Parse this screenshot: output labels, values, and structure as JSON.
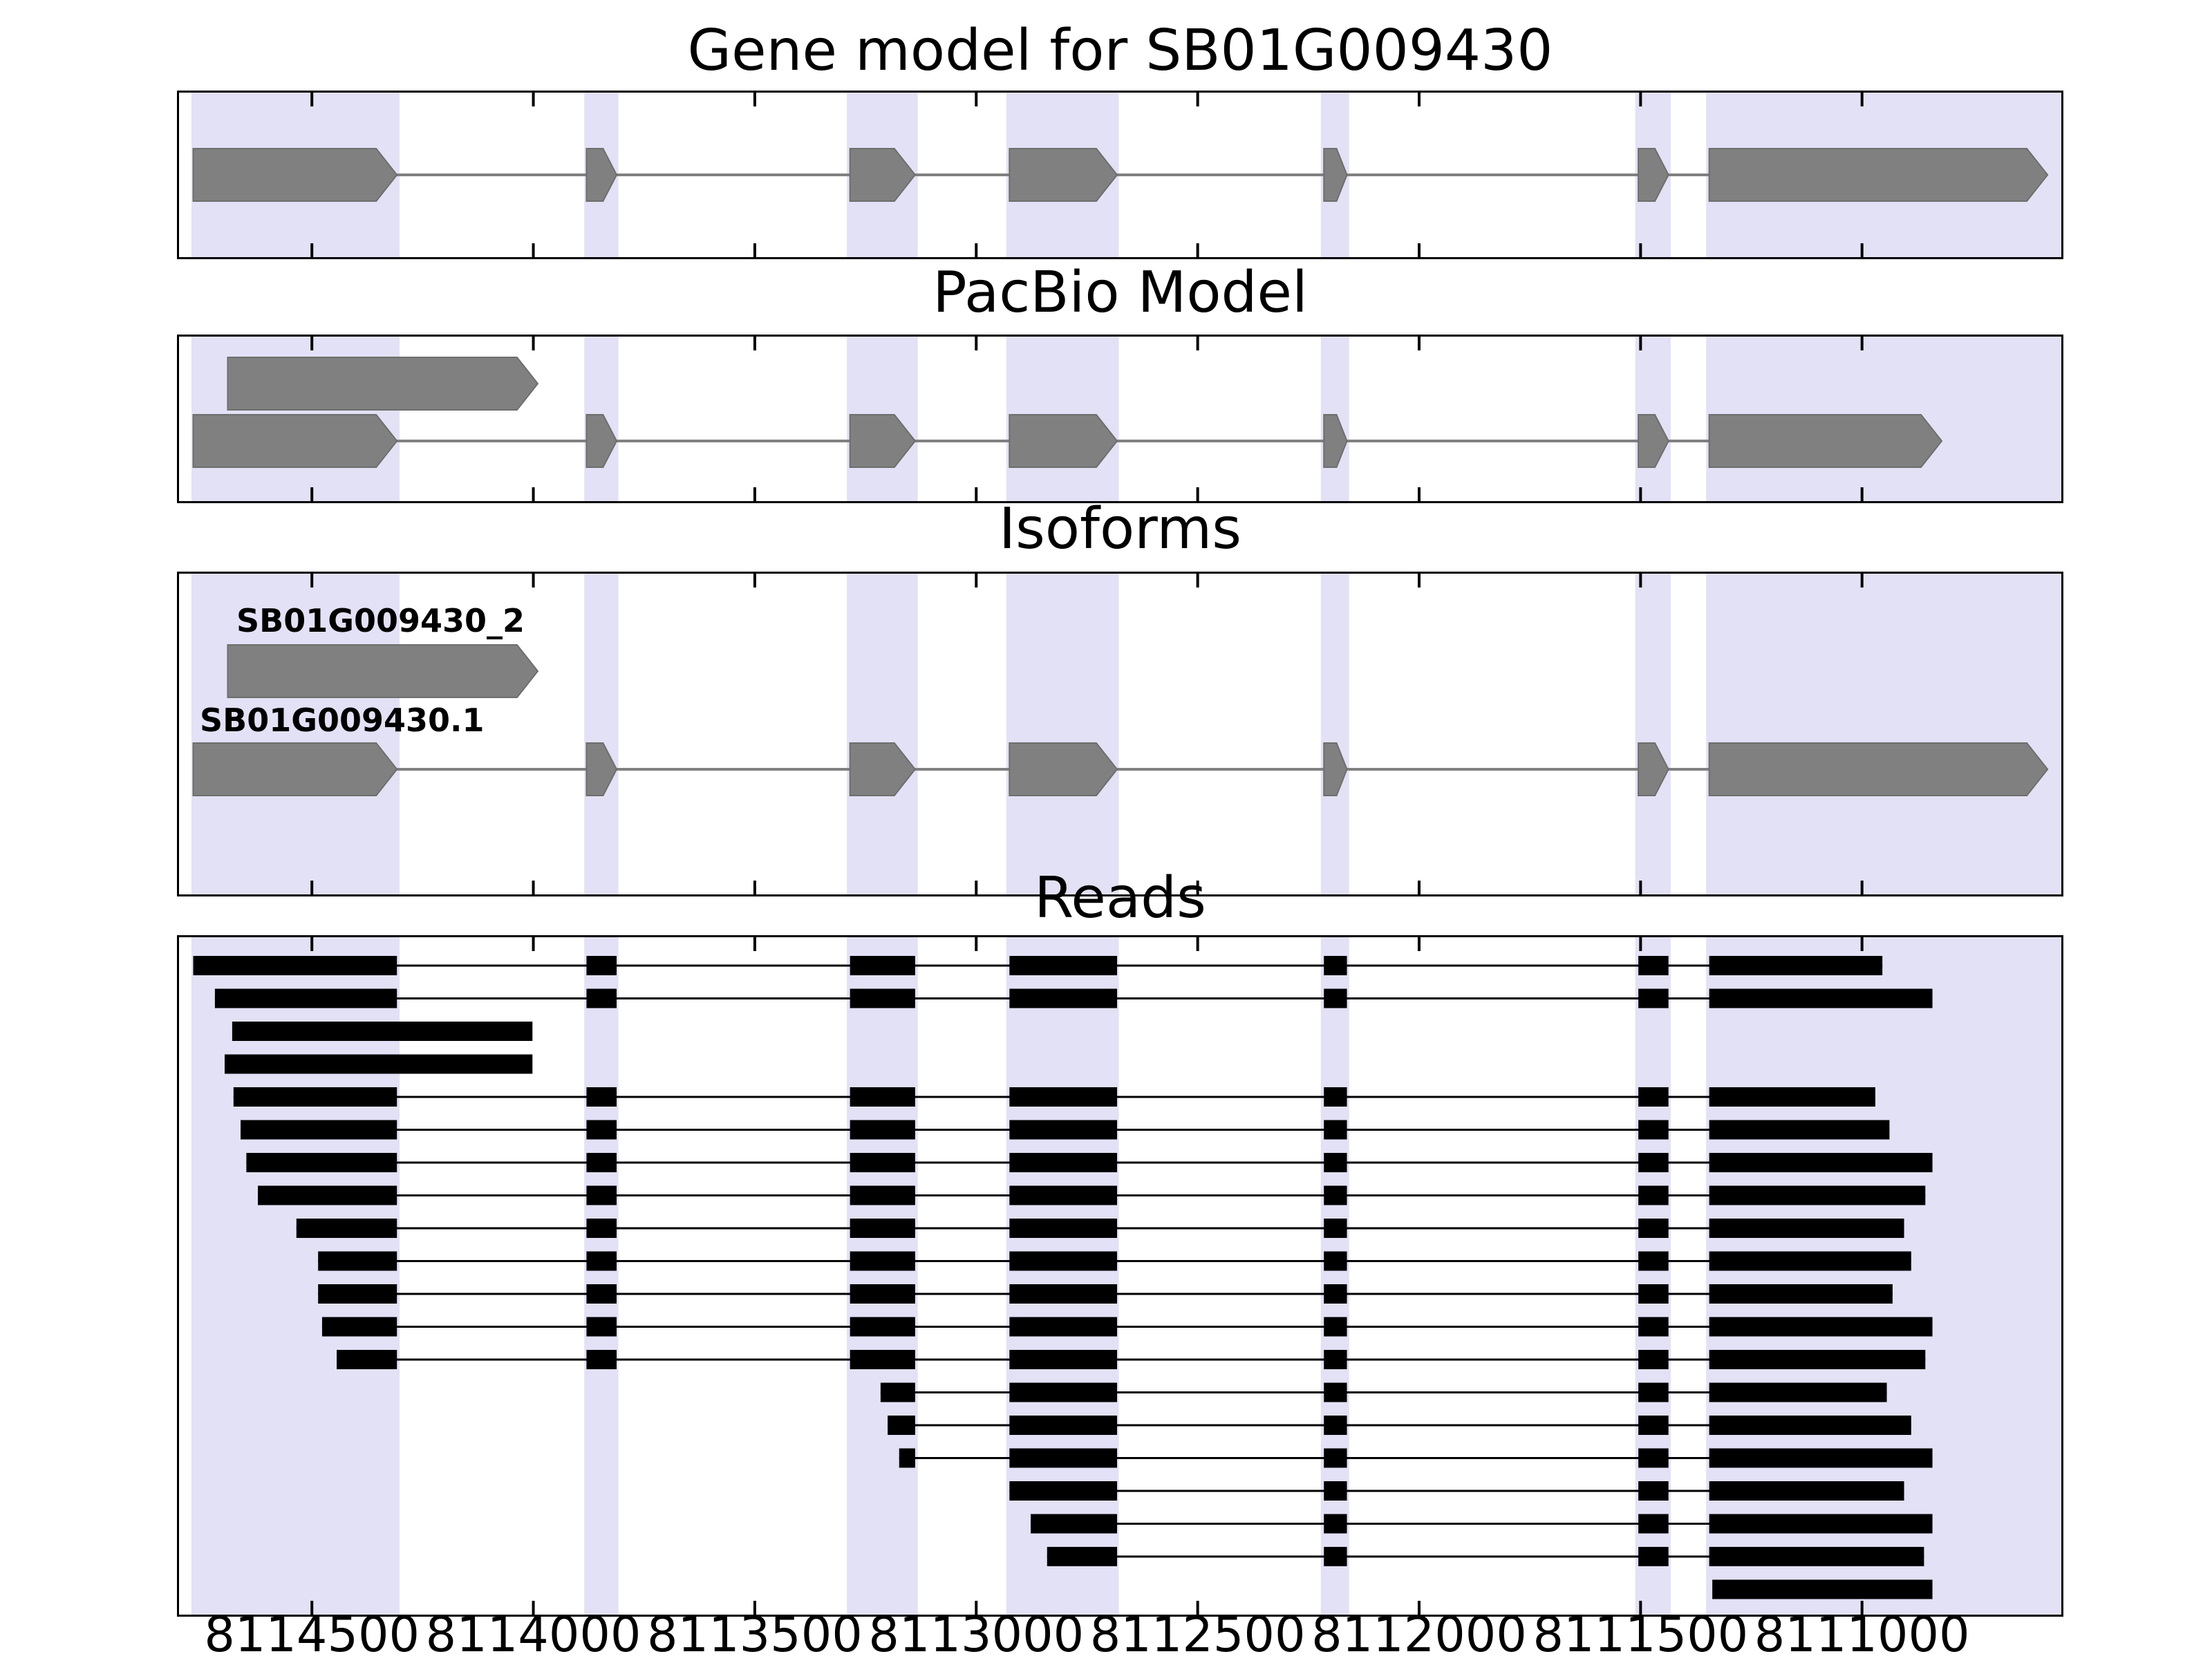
{
  "chart_data": {
    "type": "gene-model-tracks",
    "x_axis": {
      "domain": [
        8114800,
        8110550
      ],
      "direction": "decreasing",
      "tick_values": [
        8114500,
        8114000,
        8113500,
        8113000,
        8112500,
        8112000,
        8111500,
        8111000
      ],
      "tick_labels": [
        "8114500",
        "8114000",
        "8113500",
        "8113000",
        "8112500",
        "8112000",
        "8111500",
        "8111000"
      ]
    },
    "highlight_bands": [
      [
        8114772,
        8114302
      ],
      [
        8113885,
        8113808
      ],
      [
        8113292,
        8113132
      ],
      [
        8112932,
        8112678
      ],
      [
        8112222,
        8112158
      ],
      [
        8111512,
        8111432
      ],
      [
        8111352,
        8110550
      ]
    ],
    "panels": [
      {
        "title": "Gene model for SB01G009430",
        "type": "models",
        "models": [
          {
            "exons": [
              [
                8114768,
                8114308
              ],
              [
                8113880,
                8113812
              ],
              [
                8113285,
                8113138
              ],
              [
                8112925,
                8112682
              ],
              [
                8112215,
                8112163
              ],
              [
                8111505,
                8111437
              ],
              [
                8111345,
                8110581
              ]
            ]
          }
        ]
      },
      {
        "title": "PacBio Model",
        "type": "models",
        "models": [
          {
            "exons": [
              [
                8114690,
                8113990
              ]
            ]
          },
          {
            "exons": [
              [
                8114768,
                8114308
              ],
              [
                8113880,
                8113812
              ],
              [
                8113285,
                8113138
              ],
              [
                8112925,
                8112682
              ],
              [
                8112215,
                8112163
              ],
              [
                8111505,
                8111437
              ],
              [
                8111345,
                8110820
              ]
            ]
          }
        ]
      },
      {
        "title": "Isoforms",
        "type": "models",
        "models": [
          {
            "label": "SB01G009430_2",
            "exons": [
              [
                8114690,
                8113990
              ]
            ]
          },
          {
            "label": "SB01G009430.1",
            "exons": [
              [
                8114768,
                8114308
              ],
              [
                8113880,
                8113812
              ],
              [
                8113285,
                8113138
              ],
              [
                8112925,
                8112682
              ],
              [
                8112215,
                8112163
              ],
              [
                8111505,
                8111437
              ],
              [
                8111345,
                8110581
              ]
            ]
          }
        ]
      },
      {
        "title": "Reads",
        "type": "reads",
        "reads": [
          {
            "start": 8114768,
            "end": 8110954,
            "spliced": true
          },
          {
            "start": 8114719,
            "end": 8110841,
            "spliced": true
          },
          {
            "start": 8114680,
            "end": 8114002,
            "spliced": false
          },
          {
            "start": 8114697,
            "end": 8114002,
            "spliced": false
          },
          {
            "start": 8114677,
            "end": 8110970,
            "spliced": true
          },
          {
            "start": 8114661,
            "end": 8110938,
            "spliced": true
          },
          {
            "start": 8114648,
            "end": 8110841,
            "spliced": true
          },
          {
            "start": 8114622,
            "end": 8110857,
            "spliced": true
          },
          {
            "start": 8114535,
            "end": 8110905,
            "spliced": true
          },
          {
            "start": 8114486,
            "end": 8110889,
            "spliced": true
          },
          {
            "start": 8114486,
            "end": 8110931,
            "spliced": true
          },
          {
            "start": 8114477,
            "end": 8110841,
            "spliced": true
          },
          {
            "start": 8114444,
            "end": 8110857,
            "spliced": true
          },
          {
            "start": 8113216,
            "end": 8110944,
            "spliced": true
          },
          {
            "start": 8113200,
            "end": 8110889,
            "spliced": true
          },
          {
            "start": 8113174,
            "end": 8110841,
            "spliced": true
          },
          {
            "start": 8112925,
            "end": 8110905,
            "spliced": true
          },
          {
            "start": 8112877,
            "end": 8110841,
            "spliced": true
          },
          {
            "start": 8112840,
            "end": 8110860,
            "spliced": true
          },
          {
            "start": 8111338,
            "end": 8110841,
            "spliced": false
          }
        ]
      }
    ],
    "colors": {
      "band": "#e2e1f5",
      "model_fill": "#808080",
      "model_edge": "#6e6e6e",
      "read": "#000000",
      "axis": "#000000"
    }
  }
}
